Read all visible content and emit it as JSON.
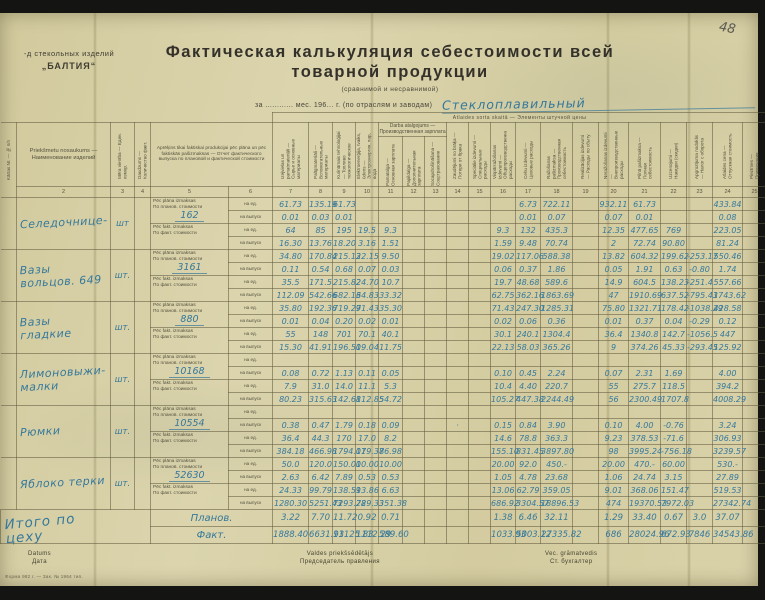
{
  "page": {
    "number": "48"
  },
  "header": {
    "org_line1": "-д стекольных изделий",
    "org_line2": "„БАЛТИЯ“",
    "title_line1": "Фактическая калькуляция себестоимости всей",
    "title_line2": "товарной продукции",
    "subtitle": "(сравнимой и несравнимой)",
    "period_line": "за ............ мес. 196... г. (по отраслям и заводам)",
    "period_handwritten": "Стеклоплавильный"
  },
  "table": {
    "band_note": "Atlaides sorta skaitā — Элементы штучной цены",
    "group_header": "Darba atalgojums — Производственная зарплата",
    "stub_label": "Kārtas Nr. — № п/п",
    "columns": [
      {
        "num": "2",
        "label": "Priekšmetu nosaukums — Наименование изделий"
      },
      {
        "num": "3",
        "label": "Mēra vienība — Един. измер."
      },
      {
        "num": "4",
        "label": "Daudzums — Количество факт."
      },
      {
        "num": "5",
        "label": "Aprēķins tikai faktiskai produkcijai pēc plāna un pēc faktiskās pašizmaksas — Отчет фактического выпуска по плановой и фактической стоимости"
      },
      {
        "num": "6",
        "label": ""
      },
      {
        "num": "7",
        "label": "Izejvielas un pamatmateriāli — Сырье и основные материалы"
      },
      {
        "num": "8",
        "label": "Palīgmateriāli — Вспомогательные материалы"
      },
      {
        "num": "9",
        "label": "Kurināmais tehnoloģijai — Топливо технологическое"
      },
      {
        "num": "10",
        "label": "Elektroenerģija, tvaiks, ūdens — Электроэнергия, пар, вода"
      },
      {
        "num": "11",
        "label": "Pamatalga — Основная зарплата"
      },
      {
        "num": "12",
        "label": "Papildalga — Дополнительная зарплата"
      },
      {
        "num": "13",
        "label": "Socapdrošināšana — Соцстрахование"
      },
      {
        "num": "14",
        "label": "Zaudējumi no brāķa — Потери от брака"
      },
      {
        "num": "15",
        "label": "Speciālie izdevumi — Специальные расходы"
      },
      {
        "num": "16",
        "label": "Vispārražošanas izdevumi — Общепроизводственные расходы"
      },
      {
        "num": "17",
        "label": "Cehu izdevumi — Цеховые расходы"
      },
      {
        "num": "18",
        "label": "Ražošanas pašizmaksa — Производственная себестоимость"
      },
      {
        "num": "19",
        "label": "Realizācijas izdevumi — Расходы по сбыту"
      },
      {
        "num": "20",
        "label": "Neražošanas izdevumi — Внепроизводственные расходы"
      },
      {
        "num": "21",
        "label": "Pilnā pašizmaksa — Полная себестоимость"
      },
      {
        "num": "22",
        "label": "Uzcenojumi — Накидки (скидки)"
      },
      {
        "num": "23",
        "label": "Apgrozījuma nodoklis — Налог с оборота"
      },
      {
        "num": "24",
        "label": "Atlaides cena — Отпускная стоимость"
      },
      {
        "num": "25",
        "label": "Piezīmes — Примечания"
      }
    ],
    "sub_labels": {
      "plan_lv": "Pēc plāna izmaksas",
      "plan_ru": "По планов. стоимости",
      "fact_lv": "Pēc fakt. izmaksas",
      "fact_ru": "По факт. стоимости",
      "per_unit": "на ед.",
      "per_output": "на выпуск"
    },
    "rows": [
      {
        "name": "Селедочнице-",
        "unit": "шт",
        "qty": "162",
        "plan_unit": [
          "61.73",
          "135.19",
          "61.73",
          "",
          "",
          "",
          "",
          "",
          "",
          "",
          "6.73",
          "722.11",
          "",
          "932.11",
          "61.73",
          "",
          "",
          "433.84",
          ""
        ],
        "plan_out": [
          "0.01",
          "0.03",
          "0.01",
          "",
          "",
          "",
          "",
          "",
          "",
          "",
          "0.01",
          "0.07",
          "",
          "0.07",
          "0.01",
          "",
          "",
          "0.08",
          ""
        ],
        "fact_unit": [
          "64",
          "85",
          "195",
          "19.5",
          "9.3",
          "",
          "",
          "",
          "",
          "9.3",
          "132",
          "435.3",
          "",
          "12.35",
          "477.65",
          "769",
          "",
          "223.05",
          ""
        ],
        "fact_out": [
          "16.30",
          "13.76",
          "18.20",
          "3.16",
          "1.51",
          "",
          "",
          "",
          "",
          "1.59",
          "9.48",
          "70.74",
          "",
          "2",
          "72.74",
          "90.80",
          "",
          "81.24",
          ""
        ]
      },
      {
        "name": "Вазы\nвольцов. 649",
        "unit": "шт.",
        "qty": "3161",
        "plan_unit": [
          "34.80",
          "170.84",
          "215.13",
          "22.15",
          "9.50",
          "",
          "",
          "",
          "",
          "19.02",
          "117.06",
          "588.38",
          "",
          "13.82",
          "604.32",
          "199.62",
          "-253.17",
          "550.46",
          ""
        ],
        "plan_out": [
          "0.11",
          "0.54",
          "0.68",
          "0.07",
          "0.03",
          "",
          "",
          "",
          "",
          "0.06",
          "0.37",
          "1.86",
          "",
          "0.05",
          "1.91",
          "0.63",
          "-0.80",
          "1.74",
          ""
        ],
        "fact_unit": [
          "35.5",
          "171.5",
          "215.82",
          "24.70",
          "10.7",
          "",
          "",
          "",
          "",
          "19.7",
          "48.68",
          "589.6",
          "",
          "14.9",
          "604.5",
          "138.23",
          "-251.4",
          "557.66",
          ""
        ],
        "fact_out": [
          "112.09",
          "542.66",
          "682.13",
          "64.83",
          "33.32",
          "",
          "",
          "",
          "",
          "62.75",
          "362.16",
          "1863.69",
          "",
          "47",
          "1910.69",
          "637.52",
          "-795.43",
          "1743.62",
          ""
        ]
      },
      {
        "name": "Вазы\nгладкие",
        "unit": "шт.",
        "qty": "880",
        "plan_unit": [
          "35.80",
          "192.36",
          "719.29",
          "71.43",
          "35.30",
          "",
          "",
          "",
          "",
          "71.43",
          "247.30",
          "1285.31",
          "",
          "75.80",
          "1321.71",
          "178.42",
          "-1038.29",
          "428.58",
          ""
        ],
        "plan_out": [
          "0.01",
          "0.04",
          "0.20",
          "0.02",
          "0.01",
          "",
          "",
          "",
          "",
          "0.02",
          "0.06",
          "0.36",
          "",
          "0.01",
          "0.37",
          "0.04",
          "-0.29",
          "0.12",
          ""
        ],
        "fact_unit": [
          "55",
          "148",
          "701",
          "70.1",
          "40.1",
          "",
          "",
          "",
          "",
          "30.1",
          "240.1",
          "1304.4",
          "",
          "36.4",
          "1340.8",
          "142.7",
          "-1056.5",
          "447",
          ""
        ],
        "fact_out": [
          "15.30",
          "41.91",
          "196.50",
          "19.04",
          "11.75",
          "",
          "",
          "",
          "",
          "22.13",
          "58.03",
          "365.26",
          "",
          "9",
          "374.26",
          "45.33",
          "-293.45",
          "125.92",
          ""
        ]
      },
      {
        "name": "Лимоновыжи-\nмалки",
        "unit": "шт.",
        "qty": "10168",
        "plan_unit": [
          "",
          "",
          "",
          "",
          "",
          "",
          "",
          "",
          "",
          "",
          "",
          "",
          "",
          "",
          "",
          "",
          "",
          "",
          ""
        ],
        "plan_out": [
          "0.08",
          "0.72",
          "1.13",
          "0.11",
          "0.05",
          "",
          "",
          "",
          "",
          "0.10",
          "0.45",
          "2.24",
          "",
          "0.07",
          "2.31",
          "1.69",
          "",
          "4.00",
          ""
        ],
        "fact_unit": [
          "7.9",
          "31.0",
          "14.0",
          "11.1",
          "5.3",
          "",
          "",
          "",
          "",
          "10.4",
          "4.40",
          "220.7",
          "",
          "55",
          "275.7",
          "118.5",
          "",
          "394.2",
          ""
        ],
        "fact_out": [
          "80.23",
          "315.63",
          "142.68",
          "112.85",
          "54.72",
          "",
          "",
          "",
          "",
          "105.27",
          "447.38",
          "2244.49",
          "",
          "56",
          "2300.49",
          "1707.8",
          "",
          "4008.29",
          ""
        ]
      },
      {
        "name": "Рюмки",
        "unit": "шт.",
        "qty": "10554",
        "plan_unit": [
          "",
          "",
          "",
          "",
          "",
          "",
          "",
          "",
          "",
          "",
          "",
          "",
          "",
          "",
          "",
          "",
          "",
          "",
          ""
        ],
        "plan_out": [
          "0.38",
          "0.47",
          "1.79",
          "0.18",
          "0.09",
          "",
          "",
          "·",
          "",
          "0.15",
          "0.84",
          "3.90",
          "",
          "0.10",
          "4.00",
          "-0.76",
          "",
          "3.24",
          ""
        ],
        "fact_unit": [
          "36.4",
          "44.3",
          "170",
          "17.0",
          "8.2",
          "",
          "",
          "",
          "",
          "14.6",
          "78.8",
          "363.3",
          "",
          "9.23",
          "378.53",
          "-71.6",
          "",
          "306.93",
          ""
        ],
        "fact_out": [
          "384.18",
          "466.98",
          "1794.01",
          "179.37",
          "86.98",
          "",
          "",
          "",
          "",
          "155.10",
          "831.45",
          "3897.80",
          "",
          "98",
          "3995.24",
          "-756.18",
          "",
          "3239.57",
          ""
        ]
      },
      {
        "name": "Яблоко терки",
        "unit": "шт.",
        "qty": "52630",
        "plan_unit": [
          "50.0",
          "120.0",
          "150.00",
          "10.00",
          "10.00",
          "",
          "",
          "",
          "",
          "20.00",
          "92.0",
          "450.-",
          "",
          "20.00",
          "470.-",
          "60.00",
          "",
          "530.-",
          ""
        ],
        "plan_out": [
          "2.63",
          "6.42",
          "7.89",
          "0.53",
          "0.53",
          "",
          "",
          "",
          "",
          "1.05",
          "4.78",
          "23.68",
          "",
          "1.06",
          "24.74",
          "3.15",
          "",
          "27.89",
          ""
        ],
        "fact_unit": [
          "24.33",
          "99.79",
          "138.59",
          "13.86",
          "6.63",
          "",
          "",
          "",
          "",
          "13.06",
          "62.79",
          "359.05",
          "",
          "9.01",
          "368.06",
          "151.47",
          "",
          "519.53",
          ""
        ],
        "fact_out": [
          "1280.30",
          "5251.43",
          "7293.28",
          "729.33",
          "351.38",
          "",
          "",
          "",
          "",
          "686.92",
          "3304.57",
          "18896.53",
          "",
          "474",
          "19370.53",
          "7972.03",
          "",
          "27342.74",
          ""
        ]
      }
    ],
    "totals": {
      "label": "Итого по\nцеху",
      "plan_label": "Планов.",
      "fact_label": "Факт.",
      "plan": [
        "3.22",
        "7.70",
        "11.72",
        "0.92",
        "0.71",
        "",
        "",
        "",
        "",
        "1.38",
        "6.46",
        "32.11",
        "",
        "1.29",
        "33.40",
        "0.67",
        "3.0",
        "37.07",
        ""
      ],
      "fact": [
        "1888.40",
        "6631.93",
        "11125.83",
        "1112.29",
        "589.60",
        "",
        "",
        "",
        "",
        "1033.93",
        "5003.12",
        "27335.82",
        "",
        "686",
        "28024.96",
        "672.93",
        "7846",
        "34543.86",
        ""
      ]
    }
  },
  "footer": {
    "date_lv": "Datums",
    "date_ru": "Дата",
    "chair_lv": "Valdes priekšsēdētājs",
    "chair_ru": "Председатель правления",
    "acct_lv": "Vec. grāmatvedis",
    "acct_ru": "Ст. бухгалтер",
    "form_note": "Форма 982 г. — Зак. № 1964 тип."
  }
}
